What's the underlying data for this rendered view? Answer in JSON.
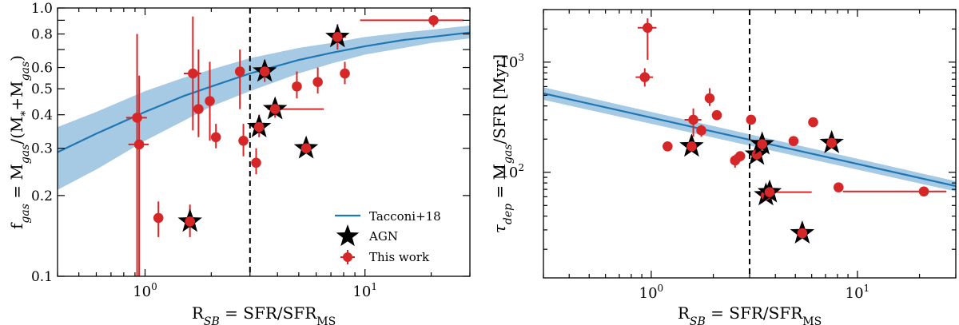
{
  "chart_data": [
    {
      "type": "scatter",
      "xscale": "log",
      "yscale": "log",
      "xlim": [
        0.4,
        30
      ],
      "ylim": [
        0.1,
        1.0
      ],
      "xlabel_main": "R",
      "xlabel_sub": "SB",
      "xlabel_eq": " = SFR/SFR",
      "xlabel_sub2": "MS",
      "ylabel_main": "f",
      "ylabel_sub": "gas",
      "ylabel_rest": " = M",
      "ylabel_sub2": "gas",
      "ylabel_rest2": "/(M",
      "ylabel_sub3": "*",
      "ylabel_rest3": "+M",
      "ylabel_sub4": "gas",
      "ylabel_rest4": ")",
      "xticks": [
        {
          "value": 1,
          "base": "10",
          "exp": "0"
        },
        {
          "value": 10,
          "base": "10",
          "exp": "1"
        }
      ],
      "yticks": [
        {
          "value": 0.1,
          "label": "0.1"
        },
        {
          "value": 0.2,
          "label": "0.2"
        },
        {
          "value": 0.3,
          "label": "0.3"
        },
        {
          "value": 0.4,
          "label": "0.4"
        },
        {
          "value": 0.5,
          "label": "0.5"
        },
        {
          "value": 0.6,
          "label": "0.6"
        },
        {
          "value": 0.8,
          "label": "0.8"
        },
        {
          "value": 1.0,
          "label": "1.0"
        }
      ],
      "vline": 3.0,
      "relation": {
        "name": "Tacconi+18",
        "x": [
          0.4,
          0.6,
          1,
          1.5,
          2,
          3,
          5,
          7,
          10,
          15,
          20,
          30
        ],
        "y": [
          0.29,
          0.34,
          0.41,
          0.47,
          0.51,
          0.57,
          0.64,
          0.68,
          0.72,
          0.76,
          0.78,
          0.81
        ],
        "y_low": [
          0.21,
          0.25,
          0.32,
          0.38,
          0.43,
          0.49,
          0.57,
          0.62,
          0.67,
          0.71,
          0.74,
          0.77
        ],
        "y_high": [
          0.36,
          0.41,
          0.49,
          0.55,
          0.59,
          0.65,
          0.71,
          0.74,
          0.78,
          0.81,
          0.83,
          0.86
        ]
      },
      "points": [
        {
          "x": 0.92,
          "y": 0.39,
          "xerr": [
            0.82,
            1.02
          ],
          "yerr": [
            0.1,
            0.8
          ],
          "agn": false
        },
        {
          "x": 0.94,
          "y": 0.31,
          "xerr": [
            0.84,
            1.04
          ],
          "yerr": [
            0.1,
            0.56
          ],
          "agn": false
        },
        {
          "x": 1.15,
          "y": 0.165,
          "xerr": null,
          "yerr": [
            0.14,
            0.19
          ],
          "agn": false
        },
        {
          "x": 1.6,
          "y": 0.16,
          "xerr": null,
          "yerr": [
            0.14,
            0.185
          ],
          "agn": true
        },
        {
          "x": 1.65,
          "y": 0.57,
          "xerr": [
            1.5,
            1.8
          ],
          "yerr": [
            0.35,
            0.93
          ],
          "agn": false
        },
        {
          "x": 1.75,
          "y": 0.42,
          "xerr": null,
          "yerr": [
            0.33,
            0.7
          ],
          "agn": false
        },
        {
          "x": 1.97,
          "y": 0.45,
          "xerr": null,
          "yerr": [
            0.32,
            0.63
          ],
          "agn": false
        },
        {
          "x": 2.1,
          "y": 0.33,
          "xerr": null,
          "yerr": [
            0.3,
            0.37
          ],
          "agn": false
        },
        {
          "x": 2.7,
          "y": 0.58,
          "xerr": null,
          "yerr": [
            0.42,
            0.7
          ],
          "agn": false
        },
        {
          "x": 2.8,
          "y": 0.32,
          "xerr": null,
          "yerr": [
            0.28,
            0.37
          ],
          "agn": false
        },
        {
          "x": 3.2,
          "y": 0.265,
          "xerr": null,
          "yerr": [
            0.24,
            0.3
          ],
          "agn": false
        },
        {
          "x": 3.3,
          "y": 0.36,
          "xerr": null,
          "yerr": [
            0.33,
            0.4
          ],
          "agn": true
        },
        {
          "x": 3.5,
          "y": 0.58,
          "xerr": null,
          "yerr": [
            0.53,
            0.64
          ],
          "agn": true
        },
        {
          "x": 3.9,
          "y": 0.42,
          "xerr": [
            3.6,
            6.5
          ],
          "yerr": [
            0.39,
            0.46
          ],
          "agn": true
        },
        {
          "x": 4.9,
          "y": 0.51,
          "xerr": null,
          "yerr": [
            0.46,
            0.58
          ],
          "agn": false
        },
        {
          "x": 5.4,
          "y": 0.3,
          "xerr": null,
          "yerr": [
            0.29,
            0.31
          ],
          "agn": true
        },
        {
          "x": 6.1,
          "y": 0.53,
          "xerr": null,
          "yerr": [
            0.48,
            0.6
          ],
          "agn": false
        },
        {
          "x": 7.5,
          "y": 0.78,
          "xerr": [
            7.0,
            8.2
          ],
          "yerr": [
            0.7,
            0.87
          ],
          "agn": true
        },
        {
          "x": 8.1,
          "y": 0.57,
          "xerr": null,
          "yerr": [
            0.52,
            0.63
          ],
          "agn": false
        },
        {
          "x": 20.5,
          "y": 0.9,
          "xerr": [
            9.5,
            28
          ],
          "yerr": [
            0.85,
            0.94
          ],
          "agn": false
        }
      ],
      "legend": {
        "position": "lower-right",
        "entries": [
          "Tacconi+18",
          "AGN",
          "This work"
        ]
      }
    },
    {
      "type": "scatter",
      "xscale": "log",
      "yscale": "log",
      "xlim": [
        0.3,
        30
      ],
      "ylim": [
        11,
        3000
      ],
      "xlabel_main": "R",
      "xlabel_sub": "SB",
      "xlabel_eq": " = SFR/SFR",
      "xlabel_sub2": "MS",
      "ylabel_main": "τ",
      "ylabel_sub": "dep",
      "ylabel_rest": " = M",
      "ylabel_sub2": "gas",
      "ylabel_rest2": "/SFR [Myr]",
      "xticks": [
        {
          "value": 1,
          "base": "10",
          "exp": "0"
        },
        {
          "value": 10,
          "base": "10",
          "exp": "1"
        }
      ],
      "yticks": [
        {
          "value": 100,
          "base": "10",
          "exp": "2"
        },
        {
          "value": 1000,
          "base": "10",
          "exp": "3"
        }
      ],
      "vline": 3.0,
      "relation": {
        "name": "Tacconi+18",
        "x": [
          0.3,
          30
        ],
        "y": [
          520,
          75
        ],
        "y_low": [
          455,
          67
        ],
        "y_high": [
          590,
          83
        ]
      },
      "points": [
        {
          "x": 0.93,
          "y": 730,
          "xerr": [
            0.84,
            1.02
          ],
          "yerr": [
            600,
            880
          ],
          "agn": false
        },
        {
          "x": 0.96,
          "y": 2050,
          "xerr": [
            0.86,
            1.06
          ],
          "yerr": [
            1050,
            2500
          ],
          "agn": false
        },
        {
          "x": 1.2,
          "y": 172,
          "xerr": null,
          "yerr": [
            155,
            190
          ],
          "agn": false
        },
        {
          "x": 1.57,
          "y": 172,
          "xerr": null,
          "yerr": [
            160,
            185
          ],
          "agn": true
        },
        {
          "x": 1.6,
          "y": 300,
          "xerr": [
            1.45,
            1.75
          ],
          "yerr": [
            210,
            380
          ],
          "agn": false
        },
        {
          "x": 1.75,
          "y": 240,
          "xerr": null,
          "yerr": [
            210,
            270
          ],
          "agn": false
        },
        {
          "x": 1.92,
          "y": 470,
          "xerr": null,
          "yerr": [
            400,
            580
          ],
          "agn": false
        },
        {
          "x": 2.08,
          "y": 330,
          "xerr": null,
          "yerr": [
            300,
            360
          ],
          "agn": false
        },
        {
          "x": 2.55,
          "y": 128,
          "xerr": null,
          "yerr": [
            110,
            145
          ],
          "agn": false
        },
        {
          "x": 2.7,
          "y": 140,
          "xerr": null,
          "yerr": [
            125,
            155
          ],
          "agn": false
        },
        {
          "x": 3.05,
          "y": 300,
          "xerr": null,
          "yerr": [
            280,
            320
          ],
          "agn": false
        },
        {
          "x": 3.25,
          "y": 145,
          "xerr": null,
          "yerr": [
            135,
            158
          ],
          "agn": true
        },
        {
          "x": 3.45,
          "y": 180,
          "xerr": null,
          "yerr": [
            165,
            195
          ],
          "agn": true
        },
        {
          "x": 3.6,
          "y": 62,
          "xerr": null,
          "yerr": [
            58,
            67
          ],
          "agn": true
        },
        {
          "x": 3.75,
          "y": 66,
          "xerr": [
            3.5,
            6.0
          ],
          "yerr": [
            62,
            71
          ],
          "agn": true
        },
        {
          "x": 4.9,
          "y": 192,
          "xerr": null,
          "yerr": [
            180,
            205
          ],
          "agn": false
        },
        {
          "x": 5.4,
          "y": 28,
          "xerr": null,
          "yerr": [
            26,
            30
          ],
          "agn": true
        },
        {
          "x": 6.1,
          "y": 285,
          "xerr": null,
          "yerr": [
            270,
            300
          ],
          "agn": false
        },
        {
          "x": 7.5,
          "y": 185,
          "xerr": null,
          "yerr": [
            170,
            200
          ],
          "agn": true
        },
        {
          "x": 8.1,
          "y": 73,
          "xerr": null,
          "yerr": [
            69,
            77
          ],
          "agn": false
        },
        {
          "x": 21,
          "y": 67,
          "xerr": [
            8.5,
            27
          ],
          "yerr": [
            64,
            70
          ],
          "agn": false
        }
      ]
    }
  ]
}
